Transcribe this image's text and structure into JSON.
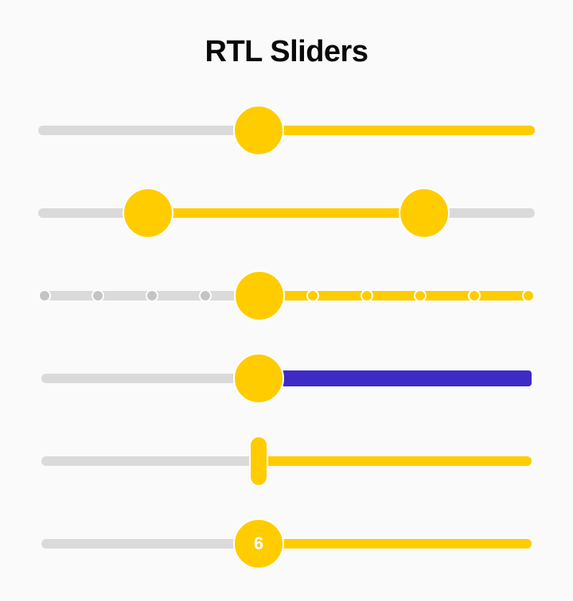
{
  "page": {
    "title": "RTL Sliders"
  },
  "colors": {
    "accent": "#ffcc00",
    "track": "#dadada",
    "tick_inactive": "#c4c4c4",
    "custom_fill": "#3d2ac7"
  },
  "sliders": [
    {
      "name": "basic",
      "value_fraction": 0.44
    },
    {
      "name": "range",
      "low_fraction": 0.22,
      "high_fraction": 0.78
    },
    {
      "name": "stepped",
      "steps": 10,
      "value_fraction": 0.44
    },
    {
      "name": "custom-color",
      "value_fraction": 0.44
    },
    {
      "name": "bar-handle",
      "value_fraction": 0.44
    },
    {
      "name": "value-label",
      "value": "6",
      "value_fraction": 0.44
    }
  ]
}
